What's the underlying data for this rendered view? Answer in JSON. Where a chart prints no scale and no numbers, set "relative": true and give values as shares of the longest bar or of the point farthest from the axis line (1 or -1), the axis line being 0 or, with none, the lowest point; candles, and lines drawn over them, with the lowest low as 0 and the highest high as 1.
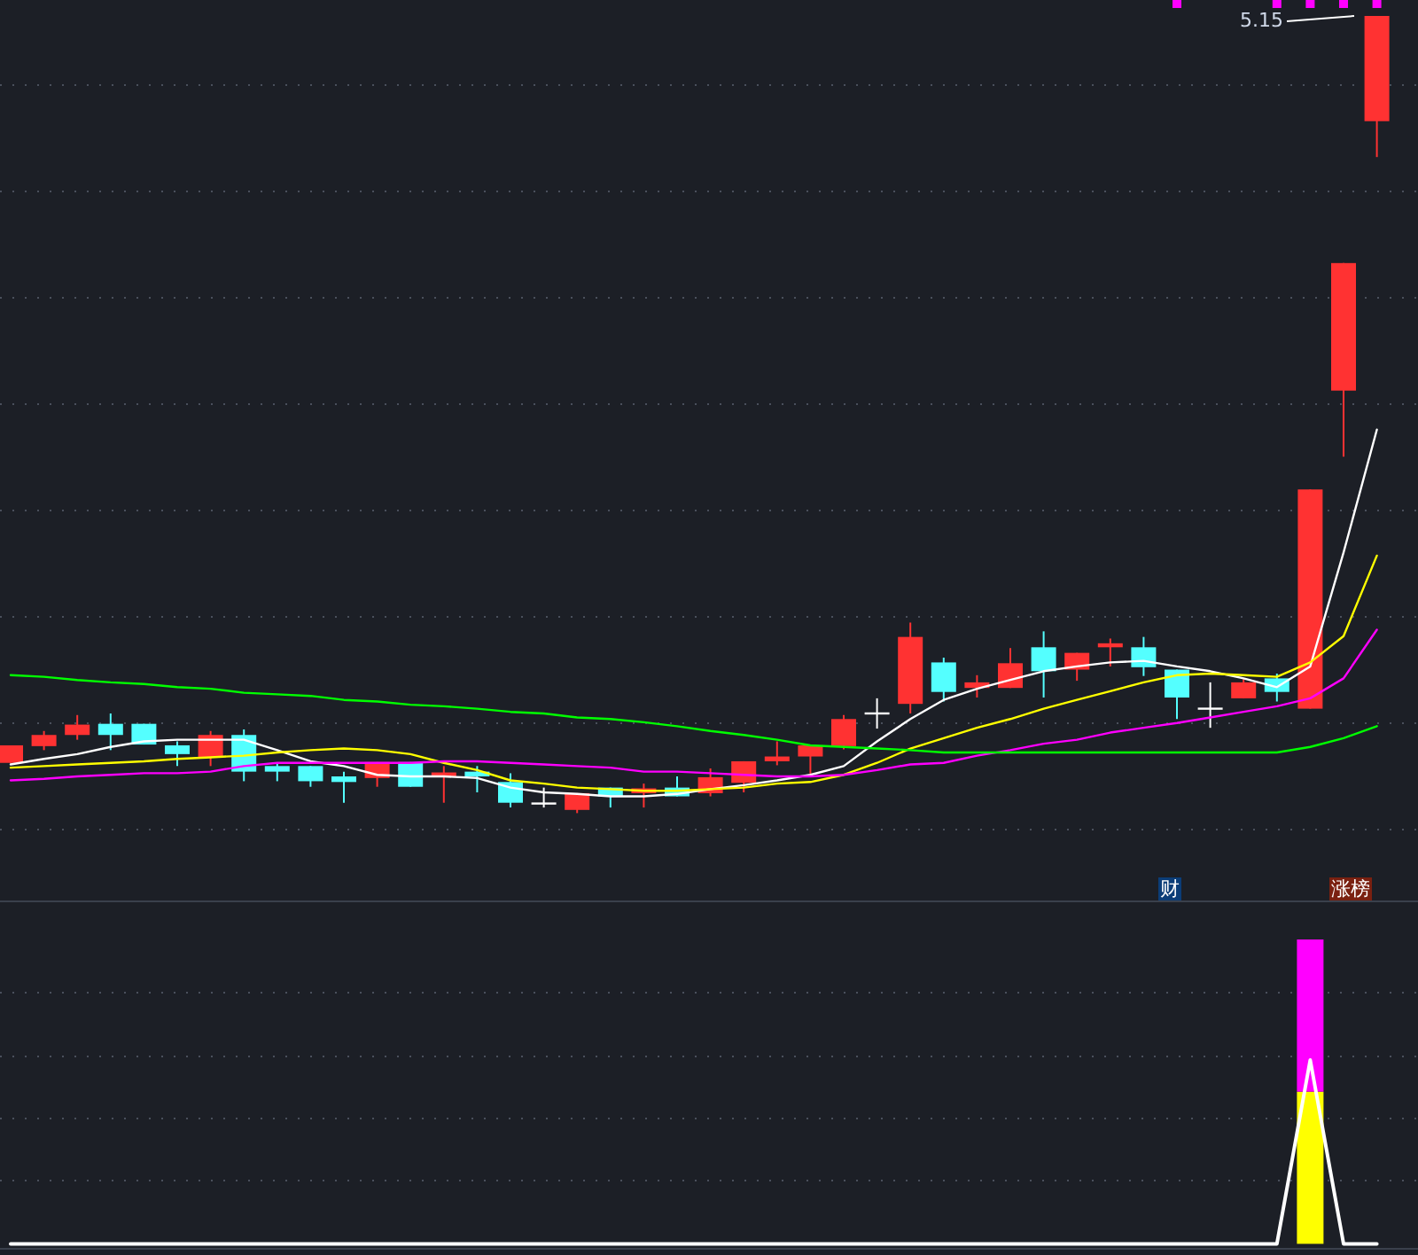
{
  "chart_data": [
    {
      "type": "candlestick",
      "relative": true,
      "grid": true,
      "categories": [
        null,
        null,
        null,
        null,
        null,
        null,
        null,
        null,
        null,
        null,
        null,
        null,
        null,
        null,
        null,
        null,
        null,
        null,
        null,
        null,
        null,
        null,
        null,
        null,
        null,
        null,
        null,
        null,
        null,
        null,
        null,
        null,
        null,
        null,
        null,
        null,
        null,
        null,
        null,
        null,
        null,
        null
      ],
      "ohlc": [
        [
          0.063,
          0.085,
          0.063,
          0.085
        ],
        [
          0.084,
          0.103,
          0.079,
          0.098
        ],
        [
          0.098,
          0.123,
          0.092,
          0.111
        ],
        [
          0.112,
          0.125,
          0.079,
          0.098
        ],
        [
          0.112,
          0.112,
          0.086,
          0.086
        ],
        [
          0.085,
          0.09,
          0.059,
          0.074
        ],
        [
          0.07,
          0.103,
          0.059,
          0.098
        ],
        [
          0.098,
          0.105,
          0.04,
          0.052
        ],
        [
          0.059,
          0.063,
          0.04,
          0.052
        ],
        [
          0.059,
          0.059,
          0.033,
          0.04
        ],
        [
          0.046,
          0.052,
          0.013,
          0.039
        ],
        [
          0.044,
          0.064,
          0.033,
          0.064
        ],
        [
          0.064,
          0.064,
          0.033,
          0.033
        ],
        [
          0.046,
          0.059,
          0.013,
          0.051
        ],
        [
          0.052,
          0.059,
          0.026,
          0.046
        ],
        [
          0.039,
          0.05,
          0.007,
          0.013
        ],
        [
          0.012,
          0.032,
          0.007,
          0.012
        ],
        [
          0.004,
          0.025,
          0,
          0.025
        ],
        [
          0.032,
          0.032,
          0.007,
          0.021
        ],
        [
          0.025,
          0.037,
          0.007,
          0.031
        ],
        [
          0.032,
          0.046,
          0.021,
          0.021
        ],
        [
          0.025,
          0.056,
          0.021,
          0.045
        ],
        [
          0.038,
          0.065,
          0.026,
          0.065
        ],
        [
          0.065,
          0.09,
          0.06,
          0.071
        ],
        [
          0.071,
          0.085,
          0.045,
          0.085
        ],
        [
          0.084,
          0.123,
          0.08,
          0.118
        ],
        [
          0.125,
          0.144,
          0.106,
          0.125
        ],
        [
          0.137,
          0.239,
          0.125,
          0.221
        ],
        [
          0.189,
          0.195,
          0.14,
          0.152
        ],
        [
          0.157,
          0.173,
          0.145,
          0.164
        ],
        [
          0.157,
          0.207,
          0.157,
          0.188
        ],
        [
          0.208,
          0.228,
          0.145,
          0.178
        ],
        [
          0.18,
          0.201,
          0.166,
          0.201
        ],
        [
          0.208,
          0.219,
          0.184,
          0.213
        ],
        [
          0.208,
          0.221,
          0.172,
          0.183
        ],
        [
          0.18,
          0.18,
          0.118,
          0.145
        ],
        [
          0.131,
          0.164,
          0.107,
          0.131
        ],
        [
          0.144,
          0.168,
          0.144,
          0.164
        ],
        [
          0.169,
          0.175,
          0.14,
          0.152
        ],
        [
          0.131,
          0.406,
          0.131,
          0.406
        ],
        [
          0.53,
          0.69,
          0.447,
          0.69
        ],
        [
          0.868,
          1,
          0.823,
          1
        ]
      ],
      "colors": [
        "#ff3232",
        "#ff3232",
        "#ff3232",
        "#54ffff",
        "#54ffff",
        "#54ffff",
        "#ff3232",
        "#54ffff",
        "#54ffff",
        "#54ffff",
        "#54ffff",
        "#ff3232",
        "#54ffff",
        "#ff3232",
        "#54ffff",
        "#54ffff",
        "#ffffff",
        "#ff3232",
        "#54ffff",
        "#ff3232",
        "#54ffff",
        "#ff3232",
        "#ff3232",
        "#ff3232",
        "#ff3232",
        "#ff3232",
        "#ffffff",
        "#ff3232",
        "#54ffff",
        "#ff3232",
        "#ff3232",
        "#54ffff",
        "#ff3232",
        "#ff3232",
        "#54ffff",
        "#54ffff",
        "#ffffff",
        "#ff3232",
        "#54ffff",
        "#ff3232",
        "#ff3232",
        "#ff3232"
      ],
      "series": [
        {
          "type": "line",
          "color": "#ffffff",
          "values": [
            0.061,
            0.068,
            0.074,
            0.083,
            0.09,
            0.092,
            0.092,
            0.092,
            0.079,
            0.065,
            0.059,
            0.048,
            0.046,
            0.046,
            0.044,
            0.032,
            0.026,
            0.024,
            0.021,
            0.021,
            0.024,
            0.03,
            0.035,
            0.041,
            0.048,
            0.059,
            0.09,
            0.118,
            0.142,
            0.156,
            0.167,
            0.178,
            0.184,
            0.189,
            0.191,
            0.184,
            0.178,
            0.169,
            0.158,
            0.184,
            0.327,
            0.481
          ]
        },
        {
          "type": "line",
          "color": "#ffff00",
          "values": [
            0.057,
            0.059,
            0.061,
            0.063,
            0.065,
            0.068,
            0.07,
            0.072,
            0.076,
            0.079,
            0.081,
            0.079,
            0.074,
            0.063,
            0.054,
            0.041,
            0.037,
            0.032,
            0.03,
            0.028,
            0.028,
            0.03,
            0.032,
            0.037,
            0.039,
            0.048,
            0.063,
            0.081,
            0.094,
            0.107,
            0.118,
            0.131,
            0.142,
            0.153,
            0.164,
            0.173,
            0.175,
            0.173,
            0.171,
            0.189,
            0.222,
            0.323
          ]
        },
        {
          "type": "line",
          "color": "#ff00ff",
          "values": [
            0.041,
            0.043,
            0.046,
            0.048,
            0.05,
            0.05,
            0.052,
            0.059,
            0.063,
            0.063,
            0.063,
            0.063,
            0.063,
            0.065,
            0.065,
            0.063,
            0.061,
            0.059,
            0.057,
            0.052,
            0.052,
            0.05,
            0.048,
            0.046,
            0.046,
            0.048,
            0.054,
            0.061,
            0.063,
            0.072,
            0.079,
            0.087,
            0.092,
            0.101,
            0.107,
            0.113,
            0.12,
            0.127,
            0.134,
            0.144,
            0.169,
            0.23
          ]
        },
        {
          "type": "line",
          "color": "#00ff00",
          "values": [
            0.173,
            0.171,
            0.167,
            0.164,
            0.162,
            0.158,
            0.156,
            0.151,
            0.149,
            0.147,
            0.142,
            0.14,
            0.136,
            0.134,
            0.131,
            0.127,
            0.125,
            0.12,
            0.118,
            0.114,
            0.109,
            0.103,
            0.098,
            0.092,
            0.085,
            0.083,
            0.081,
            0.079,
            0.076,
            0.076,
            0.076,
            0.076,
            0.076,
            0.076,
            0.076,
            0.076,
            0.076,
            0.076,
            0.076,
            0.083,
            0.094,
            0.109
          ]
        }
      ],
      "annotations": [
        "财",
        "涨榜",
        "5.15"
      ]
    },
    {
      "type": "bar",
      "stacked": true,
      "relative": true,
      "categories": [
        null
      ],
      "series": [
        {
          "color": "#ffff00",
          "values": [
            0.5
          ]
        },
        {
          "color": "#ff00ff",
          "values": [
            0.5
          ]
        }
      ]
    },
    {
      "type": "line",
      "relative": true,
      "categories": [
        null,
        null,
        null,
        null,
        null,
        null,
        null,
        null,
        null,
        null,
        null,
        null,
        null,
        null,
        null,
        null,
        null,
        null,
        null,
        null,
        null,
        null,
        null,
        null,
        null,
        null,
        null,
        null,
        null,
        null,
        null,
        null,
        null,
        null,
        null,
        null,
        null,
        null,
        null,
        null,
        null,
        null
      ],
      "series": [
        {
          "color": "#ffffff",
          "values": [
            0,
            0,
            0,
            0,
            0,
            0,
            0,
            0,
            0,
            0,
            0,
            0,
            0,
            0,
            0,
            0,
            0,
            0,
            0,
            0,
            0,
            0,
            0,
            0,
            0,
            0,
            0,
            0,
            0,
            0,
            0,
            0,
            0,
            0,
            0,
            0,
            0,
            0,
            0,
            1,
            0,
            0
          ]
        }
      ]
    }
  ]
}
